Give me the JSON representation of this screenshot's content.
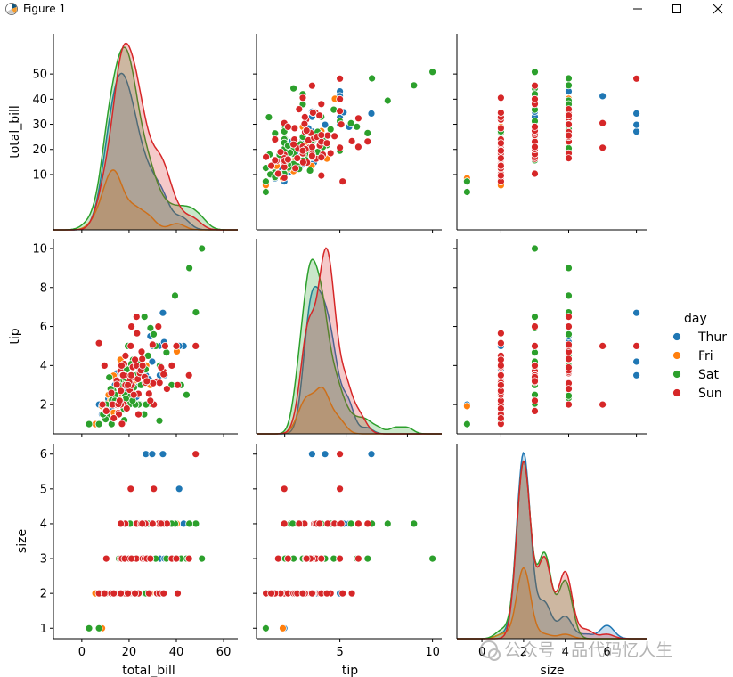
{
  "window": {
    "title": "Figure 1",
    "icons": [
      "matplotlib-icon",
      "minimize-icon",
      "maximize-icon",
      "close-icon"
    ]
  },
  "colors": {
    "Thur": "#1f77b4",
    "Fri": "#ff7f0e",
    "Sat": "#2ca02c",
    "Sun": "#d62728",
    "axis": "#000000",
    "background": "#ffffff"
  },
  "watermark": "公众号 · 品代码忆人生",
  "chart_data": {
    "type": "pairplot",
    "dataset": "tips",
    "hue": "day",
    "variables": [
      "total_bill",
      "tip",
      "size"
    ],
    "axis_labels": {
      "total_bill": "total_bill",
      "tip": "tip",
      "size": "size"
    },
    "ranges": {
      "total_bill": [
        -12,
        66
      ],
      "tip": [
        0.5,
        10.5
      ],
      "size": [
        0.7,
        6.3
      ]
    },
    "kde_ranges": {
      "total_bill": [
        -12,
        66
      ],
      "tip": [
        -2.3,
        12.8
      ],
      "size": [
        -1.2,
        7.9
      ]
    },
    "ticks": {
      "total_bill": {
        "y": [
          {
            "v": 10,
            "label": "10"
          },
          {
            "v": 20,
            "label": "20"
          },
          {
            "v": 30,
            "label": "30"
          },
          {
            "v": 40,
            "label": "40"
          },
          {
            "v": 50,
            "label": "50"
          }
        ],
        "x": [
          {
            "v": 0,
            "label": "0"
          },
          {
            "v": 20,
            "label": "20"
          },
          {
            "v": 40,
            "label": "40"
          },
          {
            "v": 60,
            "label": "60"
          }
        ]
      },
      "tip": {
        "y": [
          {
            "v": 2,
            "label": "2"
          },
          {
            "v": 4,
            "label": "4"
          },
          {
            "v": 6,
            "label": "6"
          },
          {
            "v": 8,
            "label": "8"
          },
          {
            "v": 10,
            "label": "10"
          }
        ],
        "x": [
          {
            "v": 0,
            "label": "0"
          },
          {
            "v": 5,
            "label": "5"
          },
          {
            "v": 10,
            "label": "10"
          }
        ]
      },
      "size": {
        "y": [
          {
            "v": 1,
            "label": "1"
          },
          {
            "v": 2,
            "label": "2"
          },
          {
            "v": 3,
            "label": "3"
          },
          {
            "v": 4,
            "label": "4"
          },
          {
            "v": 5,
            "label": "5"
          },
          {
            "v": 6,
            "label": "6"
          }
        ],
        "x": [
          {
            "v": 0,
            "label": "0"
          },
          {
            "v": 2,
            "label": "2"
          },
          {
            "v": 4,
            "label": "4"
          },
          {
            "v": 6,
            "label": "6"
          }
        ]
      }
    },
    "legend": {
      "title": "day",
      "position": "right",
      "entries": [
        "Thur",
        "Fri",
        "Sat",
        "Sun"
      ]
    },
    "kde_density_max": {
      "total_bill": 50.5,
      "tip": 8.9,
      "size": 6.0
    },
    "points": {
      "Thur": [
        [
          27.2,
          4.0,
          4
        ],
        [
          22.8,
          2.2,
          2
        ],
        [
          19.4,
          3.0,
          2
        ],
        [
          32.7,
          5.0,
          2
        ],
        [
          16.0,
          2.0,
          2
        ],
        [
          17.2,
          2.8,
          2
        ],
        [
          20.3,
          2.8,
          2
        ],
        [
          16.6,
          4.0,
          3
        ],
        [
          34.8,
          5.2,
          4
        ],
        [
          13.0,
          2.0,
          2
        ],
        [
          15.4,
          3.0,
          2
        ],
        [
          16.5,
          3.2,
          2
        ],
        [
          25.3,
          4.0,
          3
        ],
        [
          12.8,
          1.7,
          2
        ],
        [
          8.5,
          1.5,
          2
        ],
        [
          22.5,
          3.5,
          2
        ],
        [
          14.5,
          2.0,
          2
        ],
        [
          21.2,
          4.1,
          2
        ],
        [
          10.1,
          2.0,
          2
        ],
        [
          14.0,
          3.0,
          2
        ],
        [
          43.1,
          5.0,
          4
        ],
        [
          12.0,
          2.5,
          2
        ],
        [
          16.9,
          3.1,
          2
        ],
        [
          34.3,
          6.7,
          6
        ],
        [
          41.2,
          5.0,
          5
        ],
        [
          27.1,
          3.5,
          6
        ],
        [
          29.8,
          4.2,
          6
        ],
        [
          20.1,
          2.2,
          2
        ],
        [
          18.7,
          4.0,
          3
        ],
        [
          15.7,
          2.3,
          2
        ],
        [
          19.8,
          3.2,
          2
        ],
        [
          10.7,
          2.0,
          2
        ],
        [
          28.4,
          3.3,
          3
        ],
        [
          22.7,
          2.3,
          2
        ],
        [
          7.3,
          2.0,
          1
        ],
        [
          30.0,
          5.0,
          4
        ],
        [
          24.1,
          3.0,
          3
        ],
        [
          11.9,
          1.5,
          2
        ],
        [
          16.8,
          2.5,
          2
        ],
        [
          13.4,
          2.5,
          2
        ],
        [
          18.0,
          3.0,
          2
        ],
        [
          21.5,
          3.5,
          2
        ],
        [
          17.9,
          4.1,
          2
        ],
        [
          33.0,
          3.5,
          3
        ],
        [
          15.0,
          2.0,
          2
        ],
        [
          26.0,
          4.0,
          3
        ],
        [
          19.0,
          2.6,
          2
        ],
        [
          14.8,
          3.6,
          2
        ],
        [
          23.1,
          2.4,
          2
        ],
        [
          12.4,
          1.8,
          2
        ],
        [
          35.0,
          3.5,
          3
        ],
        [
          11.2,
          2.3,
          2
        ],
        [
          9.8,
          1.7,
          2
        ],
        [
          20.8,
          2.5,
          2
        ],
        [
          29.0,
          5.5,
          4
        ],
        [
          24.6,
          3.8,
          2
        ],
        [
          16.3,
          3.0,
          2
        ],
        [
          13.8,
          2.0,
          2
        ],
        [
          18.5,
          2.5,
          2
        ],
        [
          22.0,
          3.2,
          2
        ]
      ],
      "Fri": [
        [
          28.97,
          3.0,
          2
        ],
        [
          22.5,
          3.5,
          2
        ],
        [
          5.75,
          1.0,
          2
        ],
        [
          16.32,
          4.3,
          2
        ],
        [
          22.75,
          3.25,
          2
        ],
        [
          40.17,
          4.73,
          4
        ],
        [
          27.28,
          4.0,
          2
        ],
        [
          12.03,
          1.5,
          2
        ],
        [
          21.01,
          3.0,
          2
        ],
        [
          12.46,
          1.5,
          2
        ],
        [
          11.35,
          2.5,
          2
        ],
        [
          15.38,
          3.0,
          2
        ],
        [
          12.16,
          2.2,
          2
        ],
        [
          13.42,
          3.48,
          2
        ],
        [
          8.58,
          1.92,
          1
        ],
        [
          15.98,
          3.0,
          3
        ],
        [
          13.42,
          1.58,
          2
        ],
        [
          16.27,
          2.5,
          2
        ],
        [
          10.09,
          2.0,
          2
        ]
      ],
      "Sat": [
        [
          20.65,
          3.35,
          3
        ],
        [
          17.92,
          4.08,
          2
        ],
        [
          20.29,
          2.75,
          2
        ],
        [
          15.77,
          2.23,
          2
        ],
        [
          39.42,
          7.58,
          4
        ],
        [
          19.82,
          3.18,
          2
        ],
        [
          17.81,
          2.34,
          4
        ],
        [
          13.37,
          2.0,
          2
        ],
        [
          12.69,
          2.0,
          2
        ],
        [
          21.7,
          4.3,
          2
        ],
        [
          19.65,
          3.0,
          2
        ],
        [
          9.55,
          1.45,
          2
        ],
        [
          18.35,
          2.5,
          4
        ],
        [
          15.06,
          3.0,
          2
        ],
        [
          20.69,
          2.45,
          4
        ],
        [
          17.78,
          3.27,
          2
        ],
        [
          24.06,
          3.6,
          3
        ],
        [
          16.31,
          2.0,
          3
        ],
        [
          16.93,
          3.07,
          3
        ],
        [
          18.69,
          2.31,
          3
        ],
        [
          31.27,
          5.0,
          3
        ],
        [
          16.04,
          2.24,
          3
        ],
        [
          26.41,
          1.5,
          2
        ],
        [
          48.27,
          6.73,
          4
        ],
        [
          30.4,
          5.6,
          4
        ],
        [
          28.55,
          2.05,
          3
        ],
        [
          10.33,
          2.0,
          2
        ],
        [
          15.81,
          3.16,
          2
        ],
        [
          3.07,
          1.0,
          1
        ],
        [
          20.23,
          2.01,
          2
        ],
        [
          15.01,
          2.09,
          2
        ],
        [
          10.65,
          1.5,
          2
        ],
        [
          12.76,
          2.23,
          2
        ],
        [
          10.59,
          1.61,
          2
        ],
        [
          24.27,
          2.03,
          2
        ],
        [
          20.45,
          3.0,
          4
        ],
        [
          13.28,
          2.72,
          2
        ],
        [
          50.81,
          10.0,
          3
        ],
        [
          7.25,
          1.0,
          1
        ],
        [
          22.12,
          2.88,
          2
        ],
        [
          24.01,
          2.0,
          4
        ],
        [
          15.69,
          3.0,
          3
        ],
        [
          11.61,
          3.39,
          2
        ],
        [
          10.77,
          1.47,
          2
        ],
        [
          15.53,
          3.0,
          2
        ],
        [
          10.07,
          1.25,
          2
        ],
        [
          12.6,
          1.0,
          2
        ],
        [
          32.83,
          1.17,
          2
        ],
        [
          35.83,
          4.67,
          3
        ],
        [
          29.03,
          5.92,
          3
        ],
        [
          27.18,
          2.0,
          2
        ],
        [
          22.67,
          2.0,
          2
        ],
        [
          17.82,
          1.75,
          2
        ],
        [
          44.3,
          2.5,
          3
        ],
        [
          22.42,
          3.48,
          2
        ],
        [
          20.92,
          4.08,
          2
        ],
        [
          25.0,
          3.0,
          4
        ],
        [
          23.5,
          4.2,
          3
        ],
        [
          28.0,
          4.5,
          4
        ],
        [
          14.2,
          2.5,
          2
        ],
        [
          19.0,
          3.8,
          3
        ],
        [
          9.0,
          1.5,
          2
        ],
        [
          26.5,
          6.5,
          3
        ],
        [
          38.0,
          3.0,
          4
        ],
        [
          33.0,
          4.0,
          4
        ],
        [
          42.0,
          3.0,
          3
        ],
        [
          45.5,
          9.0,
          4
        ],
        [
          19.5,
          5.0,
          3
        ],
        [
          12.2,
          2.8,
          2
        ],
        [
          16.8,
          2.0,
          2
        ],
        [
          21.5,
          2.2,
          2
        ],
        [
          27.0,
          3.8,
          3
        ],
        [
          18.0,
          1.2,
          2
        ],
        [
          14.0,
          2.2,
          2
        ]
      ],
      "Sun": [
        [
          16.99,
          1.01,
          2
        ],
        [
          10.34,
          1.66,
          3
        ],
        [
          21.01,
          3.5,
          3
        ],
        [
          23.68,
          3.31,
          2
        ],
        [
          24.59,
          3.61,
          4
        ],
        [
          25.29,
          4.71,
          4
        ],
        [
          8.77,
          2.0,
          2
        ],
        [
          26.88,
          3.12,
          4
        ],
        [
          15.04,
          1.96,
          2
        ],
        [
          14.78,
          3.23,
          2
        ],
        [
          10.27,
          1.71,
          2
        ],
        [
          35.26,
          5.0,
          4
        ],
        [
          15.42,
          1.57,
          2
        ],
        [
          18.43,
          3.0,
          4
        ],
        [
          14.83,
          3.02,
          2
        ],
        [
          21.58,
          3.92,
          2
        ],
        [
          10.33,
          1.67,
          3
        ],
        [
          16.29,
          3.71,
          3
        ],
        [
          16.97,
          3.5,
          3
        ],
        [
          20.65,
          3.35,
          3
        ],
        [
          17.92,
          4.08,
          2
        ],
        [
          20.29,
          2.75,
          2
        ],
        [
          32.4,
          6.0,
          4
        ],
        [
          34.63,
          3.55,
          2
        ],
        [
          34.65,
          3.68,
          4
        ],
        [
          23.33,
          5.65,
          2
        ],
        [
          45.35,
          3.5,
          3
        ],
        [
          23.17,
          6.5,
          4
        ],
        [
          40.55,
          3.0,
          2
        ],
        [
          20.69,
          5.0,
          5
        ],
        [
          20.9,
          3.5,
          3
        ],
        [
          30.46,
          2.0,
          5
        ],
        [
          18.15,
          3.5,
          3
        ],
        [
          23.1,
          4.0,
          3
        ],
        [
          15.69,
          1.5,
          2
        ],
        [
          48.17,
          5.0,
          6
        ],
        [
          25.0,
          3.75,
          4
        ],
        [
          25.56,
          4.34,
          4
        ],
        [
          7.25,
          5.15,
          2
        ],
        [
          31.85,
          3.18,
          2
        ],
        [
          16.82,
          4.0,
          2
        ],
        [
          32.9,
          3.11,
          2
        ],
        [
          17.89,
          2.0,
          2
        ],
        [
          14.48,
          2.0,
          2
        ],
        [
          9.6,
          4.0,
          2
        ],
        [
          34.63,
          3.55,
          2
        ],
        [
          16.49,
          2.0,
          4
        ],
        [
          21.16,
          3.0,
          2
        ],
        [
          30.14,
          3.09,
          4
        ],
        [
          38.07,
          4.0,
          3
        ],
        [
          23.95,
          2.55,
          2
        ],
        [
          25.71,
          4.0,
          3
        ],
        [
          17.31,
          3.5,
          2
        ],
        [
          29.93,
          5.07,
          4
        ],
        [
          13.0,
          2.0,
          2
        ],
        [
          26.59,
          3.41,
          3
        ],
        [
          28.44,
          2.56,
          2
        ],
        [
          15.48,
          2.02,
          2
        ],
        [
          17.47,
          3.5,
          2
        ],
        [
          20.08,
          3.15,
          3
        ],
        [
          16.0,
          2.2,
          2
        ],
        [
          22.0,
          2.5,
          2
        ],
        [
          19.0,
          1.8,
          2
        ],
        [
          12.5,
          2.6,
          2
        ],
        [
          27.5,
          3.2,
          3
        ],
        [
          40.0,
          5.0,
          3
        ],
        [
          36.0,
          2.8,
          4
        ],
        [
          24.0,
          1.5,
          2
        ],
        [
          18.5,
          4.5,
          2
        ],
        [
          13.5,
          1.3,
          2
        ],
        [
          29.0,
          2.2,
          3
        ],
        [
          22.5,
          4.3,
          2
        ],
        [
          33.5,
          3.9,
          4
        ],
        [
          16.5,
          2.7,
          2
        ],
        [
          21.0,
          6.0,
          3
        ],
        [
          19.5,
          3.0,
          2
        ]
      ]
    }
  }
}
